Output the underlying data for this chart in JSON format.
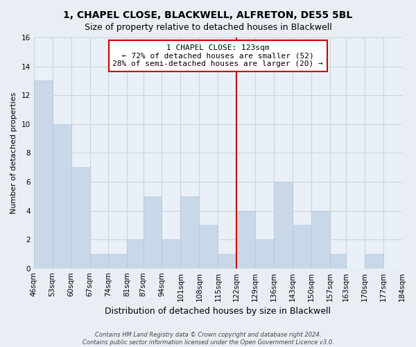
{
  "title": "1, CHAPEL CLOSE, BLACKWELL, ALFRETON, DE55 5BL",
  "subtitle": "Size of property relative to detached houses in Blackwell",
  "xlabel": "Distribution of detached houses by size in Blackwell",
  "ylabel": "Number of detached properties",
  "bar_color": "#c8d8e8",
  "bar_edge_color": "#aec8dc",
  "bins": [
    46,
    53,
    60,
    67,
    74,
    81,
    87,
    94,
    101,
    108,
    115,
    122,
    129,
    136,
    143,
    150,
    157,
    163,
    170,
    177,
    184
  ],
  "bin_labels": [
    "46sqm",
    "53sqm",
    "60sqm",
    "67sqm",
    "74sqm",
    "81sqm",
    "87sqm",
    "94sqm",
    "101sqm",
    "108sqm",
    "115sqm",
    "122sqm",
    "129sqm",
    "136sqm",
    "143sqm",
    "150sqm",
    "157sqm",
    "163sqm",
    "170sqm",
    "177sqm",
    "184sqm"
  ],
  "counts": [
    13,
    10,
    7,
    1,
    1,
    2,
    5,
    2,
    5,
    3,
    1,
    4,
    2,
    6,
    3,
    4,
    1,
    0,
    1,
    0
  ],
  "ylim": [
    0,
    16
  ],
  "yticks": [
    0,
    2,
    4,
    6,
    8,
    10,
    12,
    14,
    16
  ],
  "property_line_x": 122,
  "annotation_title": "1 CHAPEL CLOSE: 123sqm",
  "annotation_line1": "← 72% of detached houses are smaller (52)",
  "annotation_line2": "28% of semi-detached houses are larger (20) →",
  "annotation_box_color": "#ffffff",
  "annotation_box_edge_color": "#cc0000",
  "vline_color": "#cc0000",
  "footer_line1": "Contains HM Land Registry data © Crown copyright and database right 2024.",
  "footer_line2": "Contains public sector information licensed under the Open Government Licence v3.0.",
  "background_color": "#e8eef4",
  "plot_bg_color": "#eaf0f7",
  "grid_color": "#c8d4e0",
  "title_fontsize": 10,
  "subtitle_fontsize": 9,
  "ylabel_fontsize": 8,
  "xlabel_fontsize": 9,
  "tick_fontsize": 7.5,
  "annotation_fontsize": 8,
  "footer_fontsize": 6
}
